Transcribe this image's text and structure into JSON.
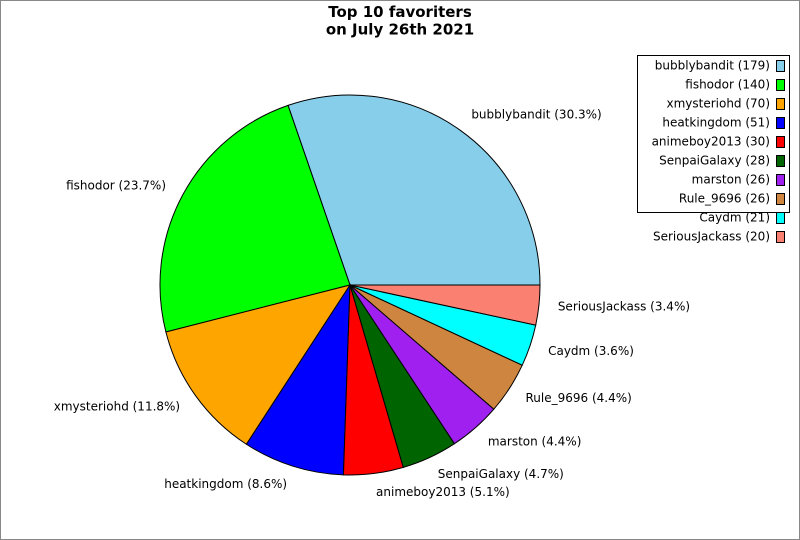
{
  "chart_data": {
    "type": "pie",
    "title": "Top 10 favoriters\non July 26th 2021",
    "legend_labels": [
      "bubblybandit (179)",
      "fishodor (140)",
      "xmysteriohd (70)",
      "heatkingdom (51)",
      "animeboy2013 (30)",
      "SenpaiGalaxy (28)",
      "marston (26)",
      "Rule_9696 (26)",
      "Caydm (21)",
      "SeriousJackass (20)"
    ],
    "slice_labels": [
      "bubblybandit (30.3%)",
      "fishodor (23.7%)",
      "xmysteriohd (11.8%)",
      "heatkingdom (8.6%)",
      "animeboy2013 (5.1%)",
      "SenpaiGalaxy (4.7%)",
      "marston (4.4%)",
      "Rule_9696 (4.4%)",
      "Caydm (3.6%)",
      "SeriousJackass (3.4%)"
    ],
    "values": [
      179,
      140,
      70,
      51,
      30,
      28,
      26,
      26,
      21,
      20
    ],
    "colors": [
      "#87ceeb",
      "#00ff00",
      "#ffa500",
      "#0000ff",
      "#ff0000",
      "#006400",
      "#a020f0",
      "#cd853f",
      "#00ffff",
      "#fa8072"
    ],
    "legend": "upper right"
  }
}
